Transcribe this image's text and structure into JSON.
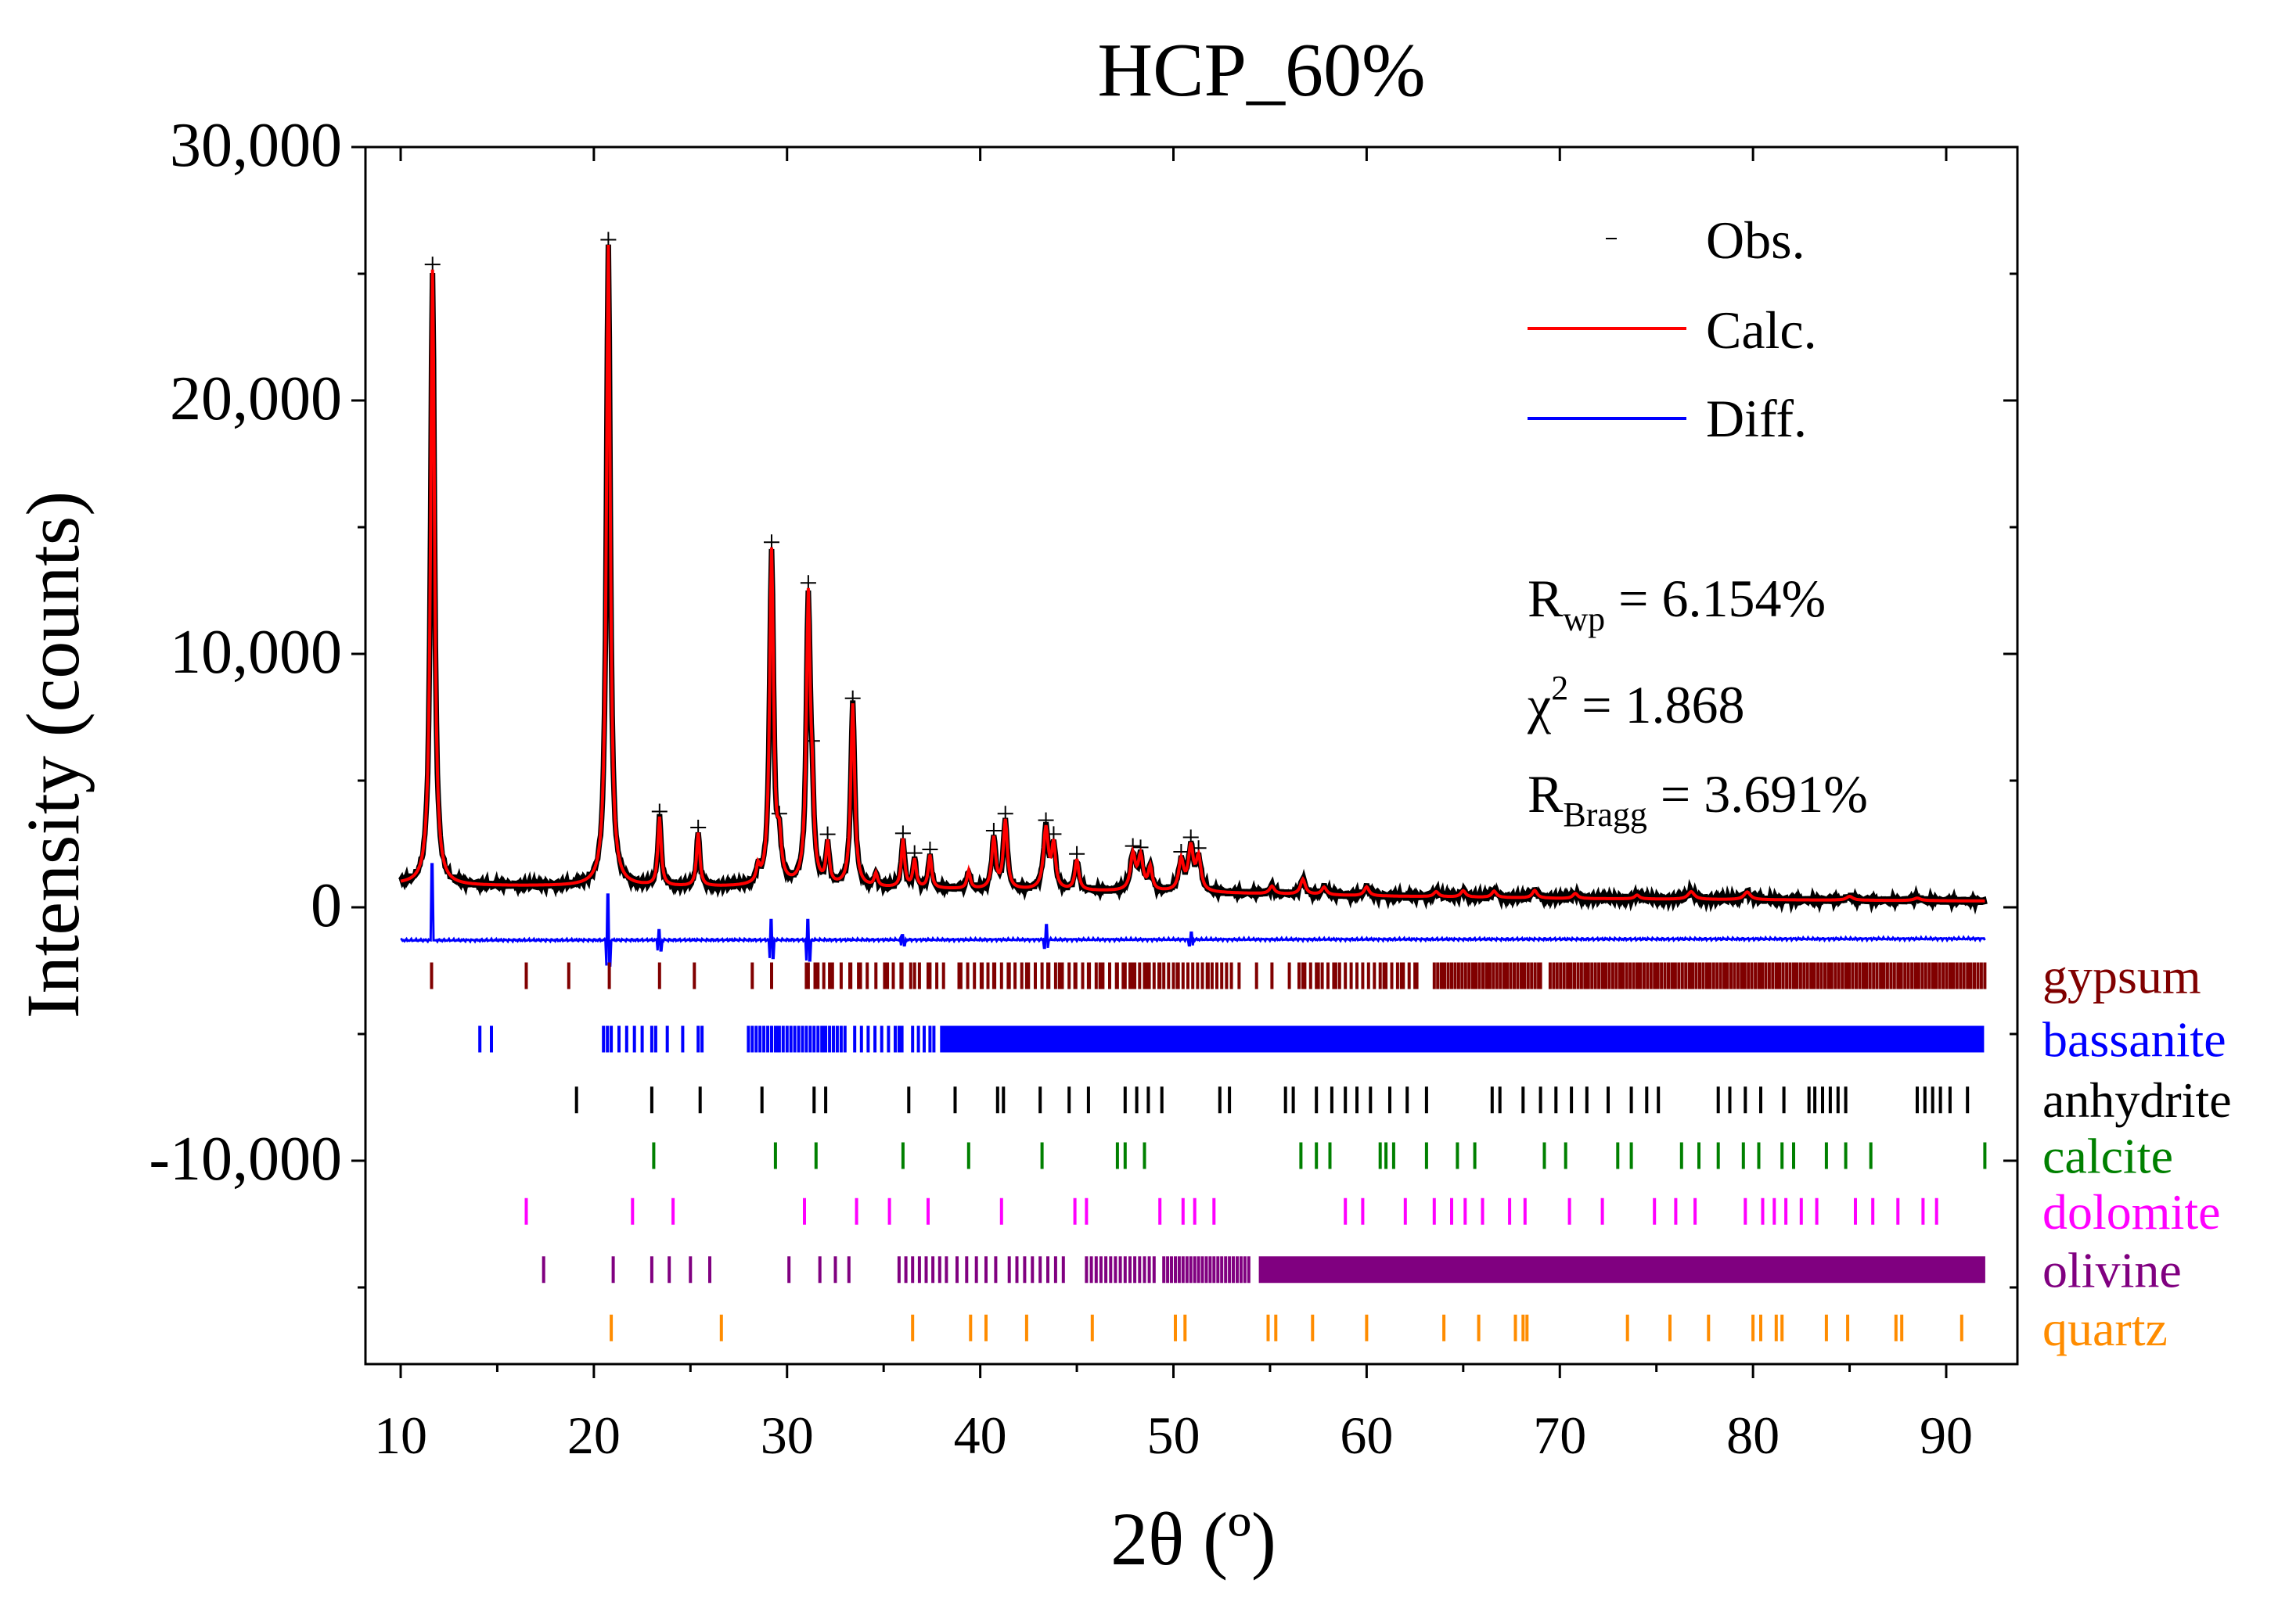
{
  "chart_data": {
    "type": "line",
    "title": "HCP_60%",
    "xlabel": "2θ (º)",
    "ylabel": "Intensity (counts)",
    "xlim": [
      8.2,
      93
    ],
    "ylim": [
      -17800,
      30000
    ],
    "x_ticks": [
      10,
      20,
      30,
      40,
      50,
      60,
      70,
      80,
      90
    ],
    "y_ticks": [
      -10000,
      0,
      10000,
      20000,
      30000
    ],
    "x_tick_labels": [
      "10",
      "20",
      "30",
      "40",
      "50",
      "60",
      "70",
      "80",
      "90"
    ],
    "y_tick_labels": [
      "-10,000",
      "0",
      "10,000",
      "20,000",
      "30,000"
    ],
    "legend": {
      "position": "top-right",
      "entries": [
        {
          "label": "Obs.",
          "color": "#000000",
          "style": "dash-marker"
        },
        {
          "label": "Calc.",
          "color": "#ff0000",
          "style": "line"
        },
        {
          "label": "Diff.",
          "color": "#0000ff",
          "style": "line"
        }
      ]
    },
    "stats": {
      "rwp_symbol": "R",
      "rwp_sub": "wp",
      "rwp_value": " = 6.154%",
      "chi_symbol": "χ",
      "chi_sup": "2",
      "chi_value": " = 1.868",
      "rbragg_symbol": "R",
      "rbragg_sub": "Bragg",
      "rbragg_value": " = 3.691%"
    },
    "pattern": {
      "x_start": 10,
      "x_end": 92,
      "step": 0.05,
      "background": [
        [
          10,
          900
        ],
        [
          12,
          850
        ],
        [
          20,
          830
        ],
        [
          25,
          800
        ],
        [
          30,
          800
        ],
        [
          33,
          780
        ],
        [
          40,
          700
        ],
        [
          50,
          600
        ],
        [
          60,
          450
        ],
        [
          70,
          350
        ],
        [
          80,
          300
        ],
        [
          92,
          250
        ]
      ],
      "peaks": [
        [
          11.65,
          24300,
          0.12
        ],
        [
          20.75,
          25300,
          0.12
        ],
        [
          23.4,
          2700,
          0.1
        ],
        [
          25.4,
          2100,
          0.1
        ],
        [
          28.5,
          600,
          0.1
        ],
        [
          29.2,
          13200,
          0.12
        ],
        [
          29.6,
          1500,
          0.12
        ],
        [
          31.1,
          11200,
          0.12
        ],
        [
          31.3,
          2500,
          0.1
        ],
        [
          32.1,
          1600,
          0.1
        ],
        [
          33.4,
          7200,
          0.12
        ],
        [
          34.6,
          500,
          0.1
        ],
        [
          36.0,
          1900,
          0.1
        ],
        [
          36.6,
          1100,
          0.1
        ],
        [
          37.4,
          1300,
          0.1
        ],
        [
          39.4,
          700,
          0.1
        ],
        [
          40.7,
          2000,
          0.12
        ],
        [
          41.3,
          2700,
          0.12
        ],
        [
          43.4,
          2400,
          0.15
        ],
        [
          43.8,
          1700,
          0.12
        ],
        [
          45.0,
          1200,
          0.12
        ],
        [
          47.9,
          1400,
          0.15
        ],
        [
          48.3,
          1300,
          0.15
        ],
        [
          48.8,
          900,
          0.12
        ],
        [
          50.4,
          1200,
          0.15
        ],
        [
          50.9,
          1700,
          0.15
        ],
        [
          51.3,
          1300,
          0.15
        ],
        [
          55.1,
          300,
          0.15
        ],
        [
          56.7,
          600,
          0.15
        ],
        [
          57.8,
          300,
          0.15
        ],
        [
          60.0,
          350,
          0.15
        ],
        [
          63.6,
          200,
          0.15
        ],
        [
          65.0,
          250,
          0.15
        ],
        [
          66.6,
          250,
          0.15
        ],
        [
          68.7,
          300,
          0.15
        ],
        [
          70.8,
          200,
          0.15
        ],
        [
          74.0,
          150,
          0.15
        ],
        [
          76.8,
          300,
          0.2
        ],
        [
          79.7,
          300,
          0.2
        ],
        [
          85.0,
          150,
          0.2
        ],
        [
          88.5,
          100,
          0.2
        ]
      ],
      "diff_baseline": -1300,
      "diff_spikes": [
        [
          11.65,
          -1300,
          1700
        ],
        [
          20.75,
          -2300,
          500
        ],
        [
          23.4,
          -1700,
          -900
        ],
        [
          29.2,
          -2000,
          -500
        ],
        [
          31.1,
          -2100,
          -500
        ],
        [
          36.0,
          -1500,
          -1100
        ],
        [
          43.4,
          -1600,
          -700
        ],
        [
          50.9,
          -1500,
          -1000
        ]
      ]
    },
    "phases": [
      {
        "name": "gypsum",
        "color": "#800000",
        "y": -2700,
        "positions": [
          11.6,
          16.5,
          18.7,
          20.8,
          23.4,
          25.2,
          28.2,
          29.2,
          31.1,
          31.6,
          32.2,
          33.3,
          33.8,
          34.6,
          35.2,
          35.9,
          36.6,
          37.4,
          38.1,
          38.9,
          40.1,
          40.7,
          41.5,
          42.4,
          43.5,
          44.1,
          44.9,
          45.6,
          46.2,
          47.1,
          47.9,
          48.6,
          49.3,
          50.2,
          51.0,
          51.8,
          52.5,
          53.4,
          54.3,
          55.1,
          56.0,
          56.7,
          57.5,
          58.4,
          59.2,
          60.1,
          60.9,
          61.8,
          62.6,
          64.0,
          65.5,
          66.3,
          67.2,
          68.1,
          69.0,
          70.5,
          71.4,
          72.3,
          73.2,
          74.1,
          75.0,
          75.9,
          76.8,
          77.7,
          78.6,
          79.5,
          80.4,
          81.3,
          82.2,
          83.1,
          84.0,
          84.9,
          85.8,
          86.7,
          87.6,
          88.5,
          89.4,
          90.3,
          91.2,
          92.0
        ],
        "dense": [
          [
            31.0,
            38.0,
            0.45
          ],
          [
            39.0,
            47.5,
            0.35
          ],
          [
            47.5,
            53.0,
            0.25
          ],
          [
            56.5,
            62.5,
            0.3
          ],
          [
            63.5,
            69.0,
            0.18
          ],
          [
            69.5,
            92.0,
            0.18
          ]
        ]
      },
      {
        "name": "bassanite",
        "color": "#0000ff",
        "y": -5200,
        "positions": [
          14.1,
          14.7,
          20.7,
          23.2,
          25.6,
          29.5,
          31.9,
          34.2,
          35.8,
          37.6,
          39.4,
          41.0,
          42.6,
          44.8,
          46.5,
          47.8,
          49.3,
          50.6,
          52.3,
          54.0,
          55.6,
          57.2,
          58.8
        ],
        "dense": [
          [
            20.5,
            22.5,
            0.4
          ],
          [
            23.0,
            25.5,
            0.8
          ],
          [
            28.0,
            33.0,
            0.2
          ],
          [
            33.5,
            36.0,
            0.35
          ],
          [
            36.5,
            37.5,
            0.3
          ],
          [
            38.0,
            92.0,
            0.12
          ]
        ]
      },
      {
        "name": "anhydrite",
        "color": "#000000",
        "y": -7600,
        "positions": [
          19.1,
          23.0,
          25.5,
          28.7,
          31.4,
          32.0,
          36.3,
          38.7,
          40.9,
          41.2,
          43.1,
          44.6,
          45.6,
          47.5,
          48.1,
          48.7,
          49.4,
          52.4,
          52.9,
          55.8,
          56.2,
          57.4,
          58.2,
          58.9,
          59.5,
          60.2,
          61.2,
          62.1,
          63.1,
          66.5,
          66.9,
          68.1,
          69.0,
          69.8,
          70.6,
          71.4,
          72.5,
          73.7,
          74.5,
          75.1,
          78.2,
          78.8,
          79.6,
          80.4,
          81.6,
          82.9,
          83.2,
          83.6,
          84.0,
          84.4,
          84.8,
          88.5,
          88.9,
          89.3,
          89.7,
          90.2,
          91.1
        ],
        "dense": []
      },
      {
        "name": "calcite",
        "color": "#008000",
        "y": -9800,
        "positions": [
          23.1,
          29.4,
          31.5,
          36.0,
          39.4,
          43.2,
          47.1,
          47.5,
          48.5,
          56.6,
          57.4,
          58.1,
          60.7,
          61.0,
          61.4,
          63.1,
          64.7,
          65.6,
          69.2,
          70.3,
          73.0,
          73.7,
          76.3,
          77.2,
          78.2,
          79.5,
          80.3,
          81.5,
          82.1,
          83.8,
          84.8,
          86.1,
          92.0
        ],
        "dense": []
      },
      {
        "name": "dolomite",
        "color": "#ff00ff",
        "y": -12000,
        "positions": [
          16.5,
          22.0,
          24.1,
          30.9,
          33.6,
          35.3,
          37.3,
          41.1,
          44.9,
          45.5,
          49.3,
          50.5,
          51.1,
          52.1,
          58.9,
          59.8,
          62.0,
          63.5,
          64.4,
          65.1,
          66.0,
          67.4,
          68.2,
          70.5,
          72.2,
          74.9,
          76.0,
          77.0,
          79.6,
          80.5,
          81.1,
          81.7,
          82.5,
          83.3,
          85.3,
          86.2,
          87.5,
          88.8,
          89.5
        ],
        "dense": []
      },
      {
        "name": "olivine",
        "color": "#800080",
        "y": -14300,
        "positions": [
          17.4,
          21.0,
          23.0,
          23.9,
          25.0,
          26.0,
          30.1,
          31.7,
          32.5,
          33.2
        ],
        "dense": [
          [
            35.8,
            38.5,
            0.35
          ],
          [
            38.8,
            40.8,
            0.5
          ],
          [
            41.5,
            44.5,
            0.4
          ],
          [
            45.5,
            49.0,
            0.25
          ],
          [
            49.5,
            54.0,
            0.2
          ],
          [
            54.5,
            92.0,
            0.16
          ]
        ]
      },
      {
        "name": "quartz",
        "color": "#ff8c00",
        "y": -16600,
        "positions": [
          20.9,
          26.6,
          36.5,
          39.5,
          40.3,
          42.4,
          45.8,
          50.1,
          50.6,
          54.9,
          55.3,
          57.2,
          60.0,
          64.0,
          65.8,
          67.7,
          68.1,
          68.3,
          73.5,
          75.7,
          77.7,
          80.0,
          80.4,
          81.2,
          81.5,
          83.8,
          84.9,
          87.4,
          87.7,
          90.8
        ],
        "dense": []
      }
    ]
  }
}
